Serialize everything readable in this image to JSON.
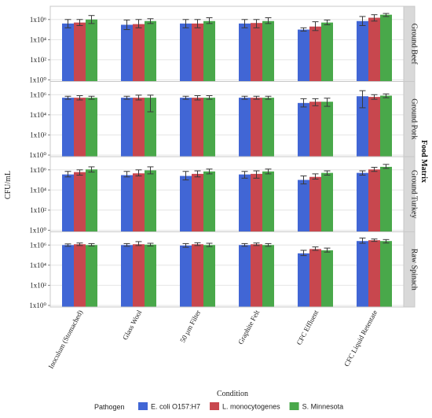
{
  "chart_data": {
    "type": "bar",
    "ylabel": "CFU/mL",
    "xlabel": "Condition",
    "facet_title": "Food Matrix",
    "y_scale": "log10",
    "ylim": [
      1,
      10000000
    ],
    "y_ticks": [
      {
        "value": 1,
        "label": "1x10⁰"
      },
      {
        "value": 100,
        "label": "1x10²"
      },
      {
        "value": 10000,
        "label": "1x10⁴"
      },
      {
        "value": 1000000,
        "label": "1x10⁶"
      }
    ],
    "categories": [
      "Inoculum (Stomached)",
      "Glass Wool",
      "50 µm Filter",
      "Graphite Felt",
      "CFC Effluent",
      "CFC Liquid Retentate"
    ],
    "legend": {
      "title": "Pathogen",
      "placement": "bottom",
      "series": [
        {
          "name": "E. coli O157:H7",
          "color": "#4166d5"
        },
        {
          "name": "L. monocytogenes",
          "color": "#c8474e"
        },
        {
          "name": "S. Minnesota",
          "color": "#49a84a"
        }
      ]
    },
    "facets": [
      {
        "label": "Ground Beef",
        "values": [
          [
            400000,
            500000,
            1000000
          ],
          [
            300000,
            350000,
            700000
          ],
          [
            400000,
            400000,
            700000
          ],
          [
            400000,
            450000,
            700000
          ],
          [
            100000,
            200000,
            500000
          ],
          [
            700000,
            1500000,
            3000000
          ]
        ],
        "error_high": [
          [
            1000000,
            1000000,
            2500000
          ],
          [
            900000,
            1000000,
            1200000
          ],
          [
            1000000,
            1000000,
            1500000
          ],
          [
            1000000,
            1000000,
            1500000
          ],
          [
            150000,
            600000,
            900000
          ],
          [
            2000000,
            3000000,
            4000000
          ]
        ],
        "error_low": [
          [
            150000,
            250000,
            400000
          ],
          [
            100000,
            150000,
            400000
          ],
          [
            150000,
            150000,
            400000
          ],
          [
            150000,
            150000,
            400000
          ],
          [
            70000,
            80000,
            300000
          ],
          [
            250000,
            700000,
            2000000
          ]
        ]
      },
      {
        "label": "Ground Pork",
        "values": [
          [
            500000,
            500000,
            500000
          ],
          [
            500000,
            500000,
            500000
          ],
          [
            500000,
            500000,
            500000
          ],
          [
            500000,
            500000,
            500000
          ],
          [
            150000,
            200000,
            200000
          ],
          [
            700000,
            600000,
            800000
          ]
        ],
        "error_high": [
          [
            700000,
            800000,
            700000
          ],
          [
            700000,
            900000,
            900000
          ],
          [
            700000,
            800000,
            800000
          ],
          [
            700000,
            700000,
            700000
          ],
          [
            400000,
            400000,
            450000
          ],
          [
            2500000,
            1000000,
            1200000
          ]
        ],
        "error_low": [
          [
            350000,
            300000,
            350000
          ],
          [
            350000,
            300000,
            20000
          ],
          [
            350000,
            300000,
            350000
          ],
          [
            350000,
            350000,
            350000
          ],
          [
            60000,
            80000,
            70000
          ],
          [
            50000,
            350000,
            500000
          ]
        ]
      },
      {
        "label": "Ground Turkey",
        "values": [
          [
            350000,
            600000,
            1100000
          ],
          [
            300000,
            450000,
            900000
          ],
          [
            250000,
            400000,
            700000
          ],
          [
            350000,
            400000,
            700000
          ],
          [
            100000,
            200000,
            500000
          ],
          [
            500000,
            1100000,
            2000000
          ]
        ],
        "error_high": [
          [
            700000,
            1000000,
            2000000
          ],
          [
            700000,
            1000000,
            2000000
          ],
          [
            700000,
            800000,
            1200000
          ],
          [
            700000,
            800000,
            1200000
          ],
          [
            250000,
            400000,
            800000
          ],
          [
            800000,
            1800000,
            3500000
          ]
        ],
        "error_low": [
          [
            200000,
            300000,
            600000
          ],
          [
            200000,
            250000,
            400000
          ],
          [
            100000,
            200000,
            400000
          ],
          [
            150000,
            150000,
            400000
          ],
          [
            40000,
            120000,
            300000
          ],
          [
            300000,
            700000,
            1400000
          ]
        ]
      },
      {
        "label": "Raw Spinach",
        "values": [
          [
            1000000,
            1200000,
            1000000
          ],
          [
            1000000,
            1200000,
            1100000
          ],
          [
            900000,
            1200000,
            1000000
          ],
          [
            1000000,
            1200000,
            1000000
          ],
          [
            150000,
            400000,
            300000
          ],
          [
            2500000,
            3000000,
            2500000
          ]
        ],
        "error_high": [
          [
            1300000,
            1600000,
            1400000
          ],
          [
            1400000,
            2200000,
            1500000
          ],
          [
            1400000,
            1700000,
            1500000
          ],
          [
            1400000,
            1600000,
            1400000
          ],
          [
            300000,
            650000,
            500000
          ],
          [
            5000000,
            4000000,
            3500000
          ]
        ],
        "error_low": [
          [
            750000,
            900000,
            800000
          ],
          [
            750000,
            900000,
            800000
          ],
          [
            600000,
            900000,
            700000
          ],
          [
            750000,
            900000,
            750000
          ],
          [
            90000,
            300000,
            200000
          ],
          [
            1500000,
            2300000,
            1600000
          ]
        ]
      }
    ]
  }
}
